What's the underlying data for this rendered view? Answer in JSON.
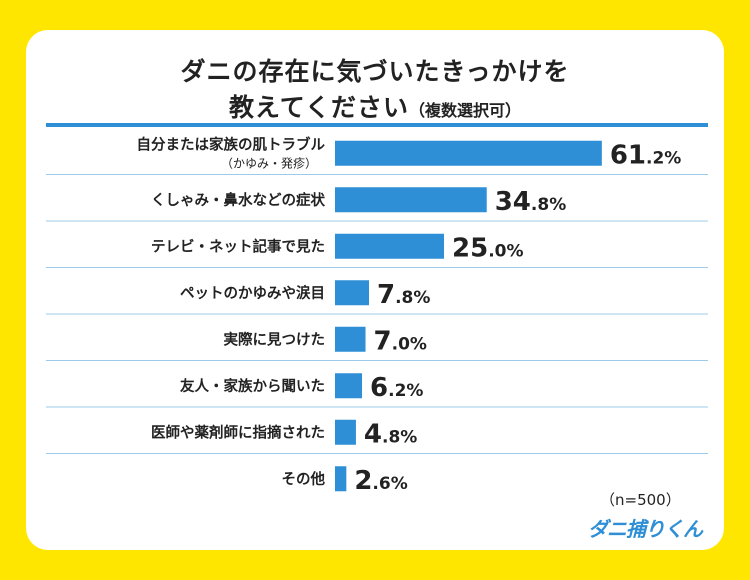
{
  "title": {
    "line1": "ダニの存在に気づいたきっかけを",
    "line2": "教えてください",
    "line2_sub": "（複数選択可）"
  },
  "sample_size": "（n=500）",
  "brand": "ダニ捕りくん",
  "colors": {
    "bar": "#2E8FD6",
    "background": "#FFE600",
    "rule": "#2E8FD6"
  },
  "chart_data": {
    "type": "bar",
    "orientation": "horizontal",
    "unit": "%",
    "categories": [
      "自分または家族の肌トラブル",
      "くしゃみ・鼻水などの症状",
      "テレビ・ネット記事で見た",
      "ペットのかゆみや涙目",
      "実際に見つけた",
      "友人・家族から聞いた",
      "医師や薬剤師に指摘された",
      "その他"
    ],
    "category_subs": [
      "（かゆみ・発疹）",
      "",
      "",
      "",
      "",
      "",
      "",
      ""
    ],
    "values": [
      61.2,
      34.8,
      25.0,
      7.8,
      7.0,
      6.2,
      4.8,
      2.6
    ],
    "value_labels": [
      "61.2%",
      "34.8%",
      "25.0%",
      "7.8%",
      "7.0%",
      "6.2%",
      "4.8%",
      "2.6%"
    ],
    "xlim": [
      0,
      100
    ]
  }
}
